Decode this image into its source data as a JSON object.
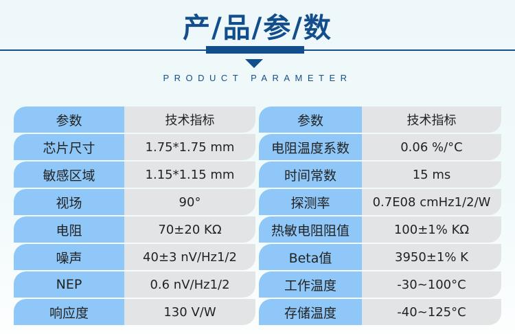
{
  "header": {
    "title": "产/品/参/数",
    "subtitle": "PRODUCT PARAMETER"
  },
  "colors": {
    "brand": "#134e8c",
    "label_bg": "#8fc8f8",
    "value_bg": "#e3e4e6"
  },
  "left_table": [
    {
      "label": "参数",
      "value": "技术指标"
    },
    {
      "label": "芯片尺寸",
      "value": "1.75*1.75 mm"
    },
    {
      "label": "敏感区域",
      "value": "1.15*1.15 mm"
    },
    {
      "label": "视场",
      "value": "90°"
    },
    {
      "label": "电阻",
      "value": "70±20 KΩ"
    },
    {
      "label": "噪声",
      "value": "40±3 nV/Hz1/2"
    },
    {
      "label": "NEP",
      "value": "0.6 nV/Hz1/2"
    },
    {
      "label": "响应度",
      "value": "130 V/W"
    }
  ],
  "right_table": [
    {
      "label": "参数",
      "value": "技术指标"
    },
    {
      "label": "电阻温度系数",
      "value": "0.06 %/°C"
    },
    {
      "label": "时间常数",
      "value": "15 ms"
    },
    {
      "label": "探测率",
      "value": "0.7E08 cmHz1/2/W"
    },
    {
      "label": "热敏电阻阻值",
      "value": "100±1% KΩ"
    },
    {
      "label": "Beta值",
      "value": "3950±1% K"
    },
    {
      "label": "工作温度",
      "value": "-30~100°C"
    },
    {
      "label": "存储温度",
      "value": "-40~125°C"
    }
  ]
}
